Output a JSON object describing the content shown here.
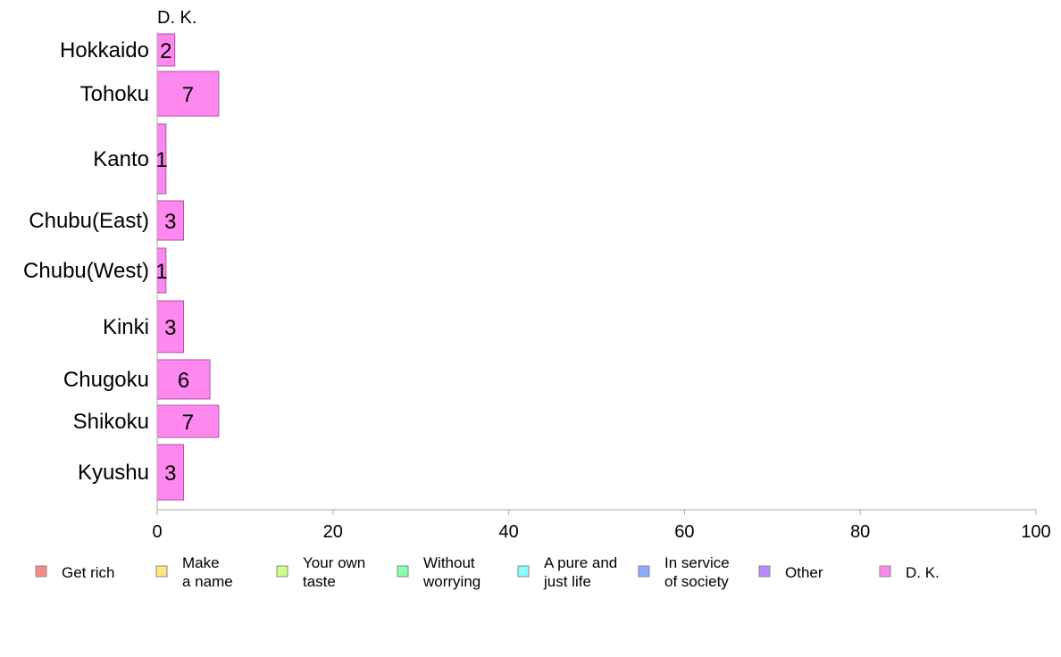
{
  "chart_data": {
    "type": "bar",
    "orientation": "horizontal",
    "stacked": true,
    "categories": [
      "Hokkaido",
      "Tohoku",
      "Kanto",
      "Chubu(East)",
      "Chubu(West)",
      "Kinki",
      "Chugoku",
      "Shikoku",
      "Kyushu"
    ],
    "series": [
      {
        "name": "D. K.",
        "color": "#ff88ee",
        "values": [
          2,
          7,
          1,
          3,
          1,
          3,
          6,
          7,
          3
        ]
      }
    ],
    "top_label": "D. K.",
    "xlim": [
      0,
      100
    ],
    "xticks": [
      "0",
      "20",
      "40",
      "60",
      "80",
      "100"
    ],
    "grid": false,
    "legend_position": "bottom",
    "legend": [
      {
        "lines": [
          "Get rich"
        ],
        "color": "#f88a8a"
      },
      {
        "lines": [
          "Make",
          "a name"
        ],
        "color": "#ffe87a"
      },
      {
        "lines": [
          "Your own",
          "taste"
        ],
        "color": "#ccff88"
      },
      {
        "lines": [
          "Without",
          "worrying"
        ],
        "color": "#88ffaa"
      },
      {
        "lines": [
          "A pure and",
          "just life"
        ],
        "color": "#88ffff"
      },
      {
        "lines": [
          "In service",
          "of society"
        ],
        "color": "#88aaff"
      },
      {
        "lines": [
          "Other"
        ],
        "color": "#bb88ff"
      },
      {
        "lines": [
          "D. K."
        ],
        "color": "#ff88ee"
      }
    ]
  }
}
